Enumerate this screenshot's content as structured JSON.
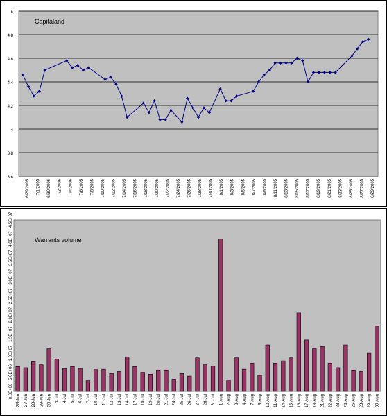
{
  "chart_data": [
    {
      "type": "line",
      "title": "Capitaland",
      "xlabel": "",
      "ylabel": "",
      "ylim": [
        3.6,
        5.0
      ],
      "yticks": [
        "3.6",
        "3.8",
        "4",
        "4.2",
        "4.4",
        "4.6",
        "4.8",
        "5"
      ],
      "grid": true,
      "legend": "none",
      "x_tick_labels": [
        "6/29/2005",
        "7/1/2005",
        "6/30/2006",
        "7/2/2006",
        "7/4/2006",
        "7/6/2005",
        "7/8/2005",
        "7/10/2005",
        "7/12/2005",
        "7/14/2005",
        "7/16/2005",
        "7/18/2005",
        "7/20/2005",
        "7/22/2005",
        "7/24/2005",
        "7/26/2005",
        "7/28/2005",
        "7/30/2005",
        "8/1/2005",
        "8/3/2005",
        "8/5/2005",
        "8/7/2005",
        "8/9/2005",
        "8/11/2005",
        "8/13/2005",
        "8/15/2005",
        "8/17/2005",
        "8/19/2005",
        "8/21/2005",
        "8/23/2005",
        "8/25/2005",
        "8/27/2005",
        "8/29/2005"
      ],
      "x_range": [
        0,
        64
      ],
      "series": [
        {
          "x": [
            0,
            1,
            2,
            3,
            4,
            8,
            9,
            10,
            11,
            12,
            15,
            16,
            17,
            18,
            19,
            22,
            23,
            24,
            25,
            26,
            27,
            29,
            30,
            31,
            32,
            33,
            34,
            36,
            37,
            38,
            39,
            42,
            43,
            44,
            45,
            46,
            47,
            48,
            49,
            50,
            51,
            52,
            53,
            54,
            55,
            56,
            57,
            60,
            61,
            62,
            63
          ],
          "values": [
            4.46,
            4.36,
            4.28,
            4.32,
            4.5,
            4.58,
            4.52,
            4.54,
            4.5,
            4.52,
            4.42,
            4.44,
            4.38,
            4.28,
            4.1,
            4.22,
            4.14,
            4.24,
            4.08,
            4.08,
            4.16,
            4.06,
            4.26,
            4.18,
            4.1,
            4.18,
            4.14,
            4.34,
            4.24,
            4.24,
            4.28,
            4.32,
            4.4,
            4.46,
            4.5,
            4.56,
            4.56,
            4.56,
            4.56,
            4.6,
            4.58,
            4.4,
            4.48,
            4.48,
            4.48,
            4.48,
            4.48,
            4.62,
            4.68,
            4.74,
            4.76
          ]
        }
      ],
      "colors": {
        "background": "#c0c0c0",
        "line": "#000080",
        "grid": "#000000"
      }
    },
    {
      "type": "bar",
      "title": "Warrants volume",
      "xlabel": "",
      "ylabel": "",
      "ylim": [
        0,
        4.5
      ],
      "yticks": [
        "0.0E+00",
        "5.0E+06",
        "1.0E+07",
        "1.5E+07",
        "2.0E+07",
        "2.5E+07",
        "3.0E+07",
        "3.5E+07",
        "4.0E+07",
        "4.5E+07"
      ],
      "grid": false,
      "legend": "none",
      "categories": [
        "28-Jun",
        "27-Jun",
        "28-Jun",
        "29-Jun",
        "30-Jun",
        "3-Jul",
        "4-Jul",
        "5-Jul",
        "6-Jul",
        "7-Jul",
        "10-Jul",
        "11-Jul",
        "12-Jul",
        "13-Jul",
        "14-Jul",
        "17-Jul",
        "18-Jul",
        "19-Jul",
        "20-Jul",
        "21-Jul",
        "24-Jul",
        "25-Jul",
        "26-Jul",
        "27-Jul",
        "28-Jul",
        "31-Jul",
        "1-Aug",
        "2-Aug",
        "3-Aug",
        "4-Aug",
        "7-Aug",
        "8-Aug",
        "10-Aug",
        "11-Aug",
        "14-Aug",
        "15-Aug",
        "16-Aug",
        "17-Aug",
        "18-Aug",
        "21-Aug",
        "22-Aug",
        "23-Aug",
        "24-Aug",
        "25-Aug",
        "28-Aug",
        "29-Aug",
        "30-Aug"
      ],
      "values": [
        0.65,
        0.62,
        0.78,
        0.7,
        1.12,
        0.85,
        0.6,
        0.65,
        0.6,
        0.28,
        0.57,
        0.58,
        0.47,
        0.52,
        0.9,
        0.65,
        0.5,
        0.45,
        0.56,
        0.56,
        0.32,
        0.47,
        0.4,
        0.88,
        0.7,
        0.66,
        4.0,
        0.3,
        0.88,
        0.58,
        0.74,
        0.42,
        1.22,
        0.74,
        0.8,
        0.88,
        2.06,
        1.35,
        1.12,
        1.18,
        0.74,
        0.62,
        1.22,
        0.56,
        0.52,
        1.0,
        1.7
      ],
      "colors": {
        "background": "#c0c0c0",
        "bar": "#993366",
        "bar_border": "#000000"
      }
    }
  ]
}
